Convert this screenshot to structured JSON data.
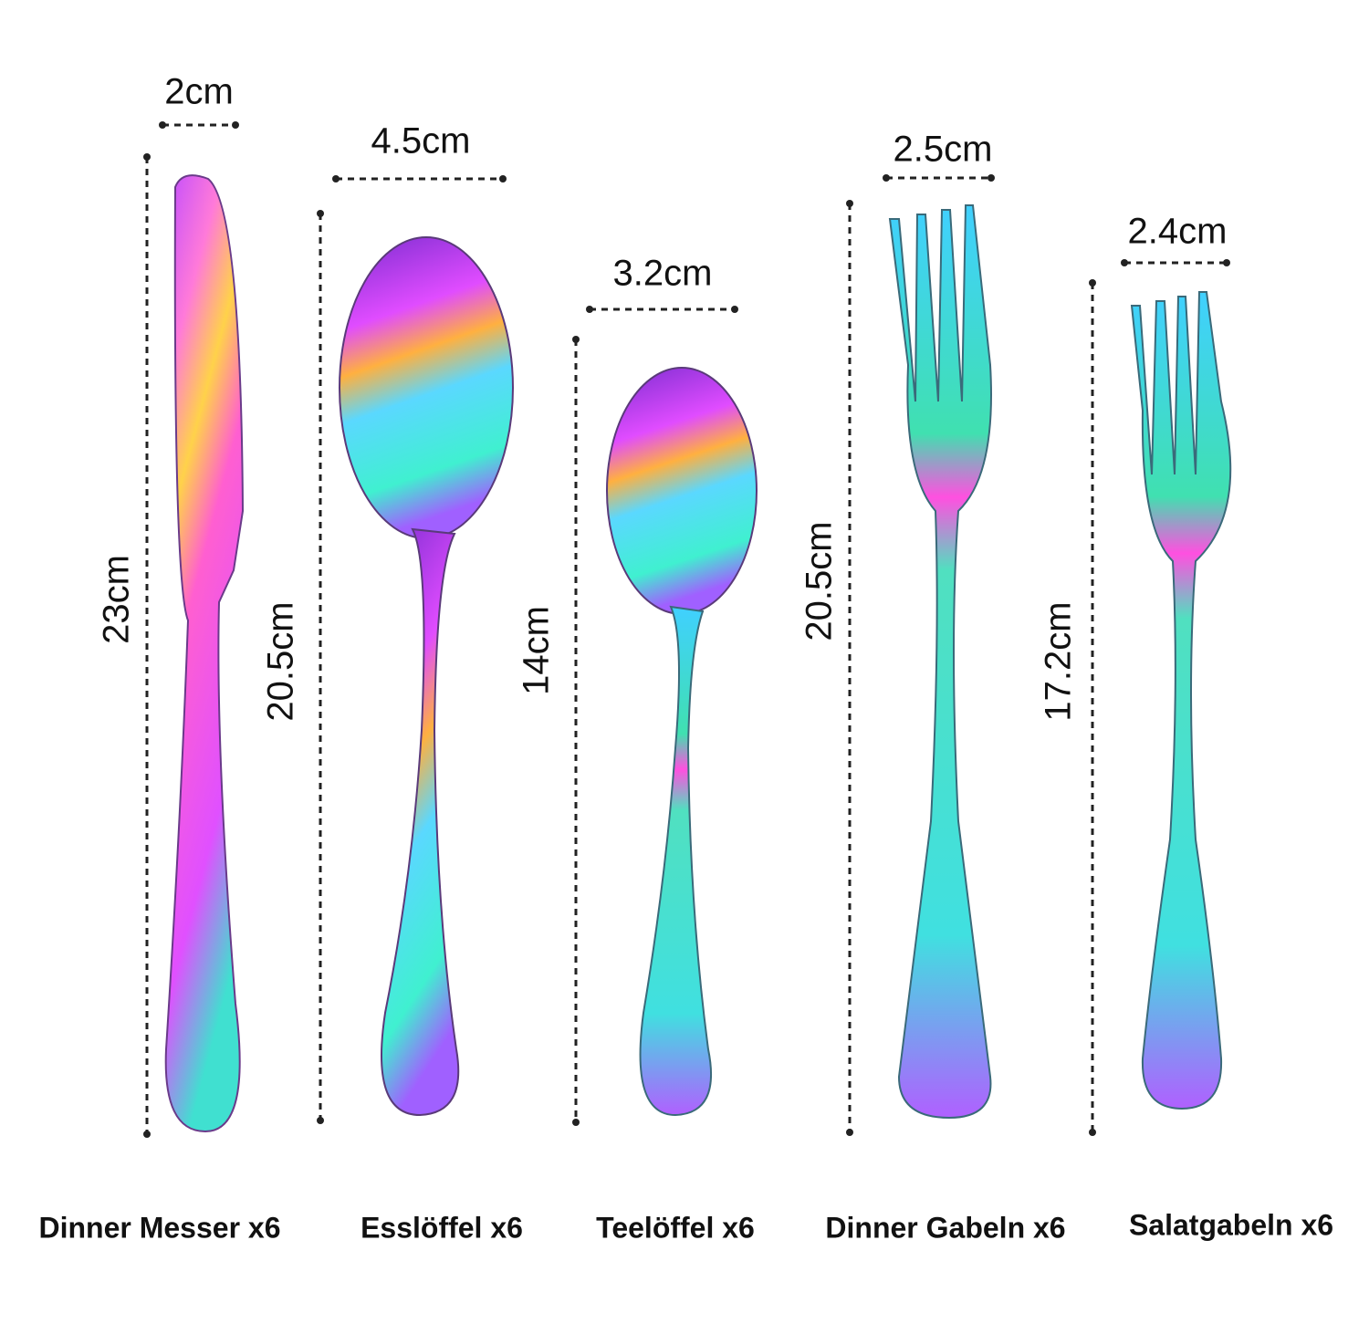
{
  "items": [
    {
      "width": "2cm",
      "length": "23cm",
      "name": "Dinner Messer x6"
    },
    {
      "width": "4.5cm",
      "length": "20.5cm",
      "name": "Esslöffel x6"
    },
    {
      "width": "3.2cm",
      "length": "14cm",
      "name": "Teelöffel x6"
    },
    {
      "width": "2.5cm",
      "length": "20.5cm",
      "name": "Dinner Gabeln x6"
    },
    {
      "width": "2.4cm",
      "length": "17.2cm",
      "name": "Salatgabeln x6"
    }
  ]
}
